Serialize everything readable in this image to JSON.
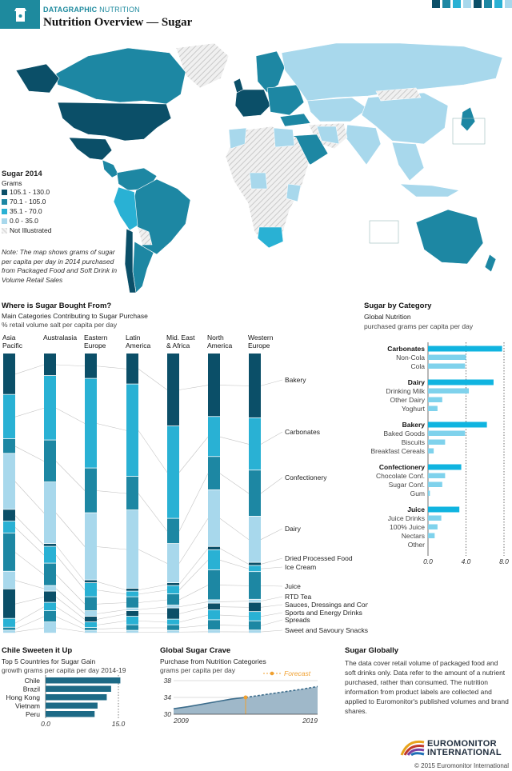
{
  "header": {
    "brand_bold": "DATAGRAPHIC",
    "brand_rest": "NUTRITION",
    "title": "Nutrition Overview — Sugar"
  },
  "map": {
    "legend_title": "Sugar 2014",
    "legend_unit": "Grams",
    "legend": [
      {
        "label": "105.1 - 130.0",
        "color": "#0b4f68"
      },
      {
        "label": "70.1 - 105.0",
        "color": "#1d87a3"
      },
      {
        "label": "35.1 - 70.0",
        "color": "#29b1d4"
      },
      {
        "label": "0.0 - 35.0",
        "color": "#a8d8ec"
      },
      {
        "label": "Not Illustrated",
        "color": "#dcdcdc"
      }
    ],
    "note": "Note: The map shows grams of sugar per capita per day in 2014 purchased from Packaged Food and Soft Drink in Volume Retail Sales"
  },
  "where": {
    "title": "Where is Sugar Bought From?",
    "subtitle": "Main Categories Contributing to Sugar Purchase",
    "unit": "% retail volume salt per capita per day",
    "regions": [
      "Asia Pacific",
      "Australasia",
      "Eastern Europe",
      "Latin America",
      "Mid. East & Africa",
      "North America",
      "Western Europe"
    ],
    "region_lines": [
      [
        "Asia",
        "Pacific"
      ],
      [
        "Australasia"
      ],
      [
        "Eastern",
        "Europe"
      ],
      [
        "Latin",
        "America"
      ],
      [
        "Mid. East",
        "& Africa"
      ],
      [
        "North",
        "America"
      ],
      [
        "Western",
        "Europe"
      ]
    ],
    "categories": [
      "Bakery",
      "Carbonates",
      "Confectionery",
      "Dairy",
      "Dried Processed Food",
      "Ice Cream",
      "Juice",
      "RTD Tea",
      "Sauces, Dressings and Condiments",
      "Sports and Energy Drinks",
      "Spreads",
      "Sweet and Savoury Snacks"
    ],
    "colors": [
      "#0b4f68",
      "#29b1d4",
      "#1d87a3",
      "#a8d8ec",
      "#0b4f68",
      "#29b1d4",
      "#1d87a3",
      "#a8d8ec",
      "#0b4f68",
      "#29b1d4",
      "#1d87a3",
      "#a8d8ec"
    ]
  },
  "chart_data": [
    {
      "type": "bar",
      "stacked": true,
      "orientation": "vertical",
      "categories": [
        "Asia Pacific",
        "Australasia",
        "Eastern Europe",
        "Latin America",
        "Mid. East & Africa",
        "North America",
        "Western Europe"
      ],
      "series": [
        {
          "name": "Bakery",
          "values": [
            14,
            8,
            9,
            11,
            26,
            19,
            21
          ]
        },
        {
          "name": "Carbonates",
          "values": [
            15,
            23,
            32,
            33,
            33,
            12,
            17
          ]
        },
        {
          "name": "Confectionery",
          "values": [
            5,
            15,
            16,
            12,
            9,
            10,
            15
          ]
        },
        {
          "name": "Dairy",
          "values": [
            19,
            22,
            24,
            28,
            14,
            17,
            15
          ]
        },
        {
          "name": "Dried Processed Food",
          "values": [
            4,
            1,
            1,
            1,
            1,
            1,
            1
          ]
        },
        {
          "name": "Ice Cream",
          "values": [
            4,
            6,
            5,
            2,
            3,
            6,
            2
          ]
        },
        {
          "name": "Juice",
          "values": [
            13,
            8,
            5,
            4,
            4,
            9,
            9
          ]
        },
        {
          "name": "RTD Tea",
          "values": [
            6,
            2,
            2,
            1,
            1,
            1,
            1
          ]
        },
        {
          "name": "Sauces, Dressings and Condiments",
          "values": [
            10,
            4,
            2,
            2,
            4,
            2,
            3
          ]
        },
        {
          "name": "Sports and Energy Drinks",
          "values": [
            3,
            3,
            2,
            3,
            2,
            3,
            3
          ]
        },
        {
          "name": "Spreads",
          "values": [
            1,
            4,
            1,
            2,
            2,
            3,
            3
          ]
        },
        {
          "name": "Sweet and Savoury Snacks",
          "values": [
            1,
            4,
            1,
            1,
            1,
            1,
            1
          ]
        }
      ],
      "ylim": [
        0,
        100
      ]
    },
    {
      "type": "bar",
      "orientation": "horizontal",
      "title": "Sugar by Category",
      "subtitle": "Global Nutrition",
      "unit": "purchased grams per capita per day",
      "groups": [
        {
          "name": "Carbonates",
          "value": 7.8,
          "items": [
            {
              "name": "Non-Cola",
              "value": 4.0
            },
            {
              "name": "Cola",
              "value": 3.9
            }
          ]
        },
        {
          "name": "Dairy",
          "value": 6.9,
          "items": [
            {
              "name": "Drinking Milk",
              "value": 4.3
            },
            {
              "name": "Other Dairy",
              "value": 1.5
            },
            {
              "name": "Yoghurt",
              "value": 1.0
            }
          ]
        },
        {
          "name": "Bakery",
          "value": 6.2,
          "items": [
            {
              "name": "Baked Goods",
              "value": 3.9
            },
            {
              "name": "Biscuits",
              "value": 1.8
            },
            {
              "name": "Breakfast Cereals",
              "value": 0.6
            }
          ]
        },
        {
          "name": "Confectionery",
          "value": 3.5,
          "items": [
            {
              "name": "Chocolate Conf.",
              "value": 1.8
            },
            {
              "name": "Sugar Conf.",
              "value": 1.5
            },
            {
              "name": "Gum",
              "value": 0.2
            }
          ]
        },
        {
          "name": "Juice",
          "value": 3.3,
          "items": [
            {
              "name": "Juice Drinks",
              "value": 1.4
            },
            {
              "name": "100% Juice",
              "value": 1.0
            },
            {
              "name": "Nectars",
              "value": 0.7
            },
            {
              "name": "Other",
              "value": 0.0
            }
          ]
        }
      ],
      "xticks": [
        "0.0",
        "4.0",
        "8.0"
      ],
      "xlim": [
        0,
        8
      ]
    },
    {
      "type": "bar",
      "orientation": "horizontal",
      "title": "Chile Sweeten it Up",
      "subtitle": "Top 5 Countries for Sugar Gain",
      "unit": "growth grams per capita per day 2014-19",
      "categories": [
        "Chile",
        "Brazil",
        "Hong Kong",
        "Vietnam",
        "Peru"
      ],
      "values": [
        15.4,
        13.5,
        12.6,
        10.7,
        10.1
      ],
      "xticks": [
        "0.0",
        "15.0"
      ],
      "xlim": [
        0,
        15
      ]
    },
    {
      "type": "area",
      "title": "Global Sugar Crave",
      "subtitle": "Purchase from Nutrition Categories",
      "unit": "grams per capita per day",
      "legend": "Forecast",
      "x": [
        2009,
        2010,
        2011,
        2012,
        2013,
        2014,
        2015,
        2016,
        2017,
        2018,
        2019
      ],
      "values": [
        31.3,
        31.8,
        32.4,
        33.0,
        33.6,
        34.0,
        34.5,
        35.0,
        35.5,
        36.0,
        36.6
      ],
      "forecast_from": 2014,
      "xticks": [
        "2009",
        "2019"
      ],
      "yticks": [
        "30",
        "34",
        "38"
      ],
      "ylim": [
        30,
        38
      ]
    }
  ],
  "globally": {
    "title": "Sugar Globally",
    "text": "The data cover retail volume of packaged food and soft drinks only. Data refer to the amount of a nutrient purchased, rather than consumed. The nutrition information from product labels are collected and applied to Euromonitor's published volumes and brand shares."
  },
  "footer": {
    "logo_line1": "EUROMONITOR",
    "logo_line2": "INTERNATIONAL",
    "copyright": "© 2015 Euromonitor International"
  }
}
